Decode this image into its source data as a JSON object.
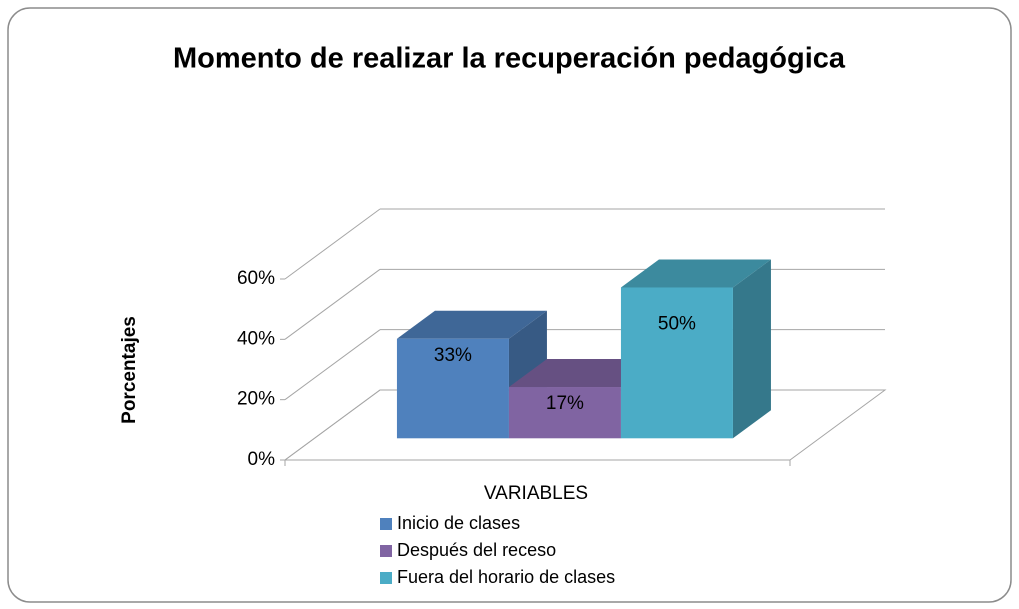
{
  "chart_data": {
    "type": "bar3d",
    "title": "Momento de realizar la recuperación pedagógica",
    "y_label": "Porcentajes",
    "x_label": "VARIABLES",
    "series": [
      {
        "name": "Inicio de clases",
        "color": "#4f81bd",
        "values": [
          33
        ],
        "value_labels": [
          "33%"
        ]
      },
      {
        "name": "Después del receso",
        "color": "#8064a2",
        "values": [
          17
        ],
        "value_labels": [
          "17%"
        ]
      },
      {
        "name": "Fuera del horario de clases",
        "color": "#4bacc6",
        "values": [
          50
        ],
        "value_labels": [
          "50%"
        ]
      }
    ],
    "ylim": [
      0,
      60
    ],
    "yticks": [
      {
        "value": 0,
        "label": "0%"
      },
      {
        "value": 20,
        "label": "20%"
      },
      {
        "value": 40,
        "label": "40%"
      },
      {
        "value": 60,
        "label": "60%"
      }
    ],
    "grid": true,
    "legend": "bottom"
  }
}
